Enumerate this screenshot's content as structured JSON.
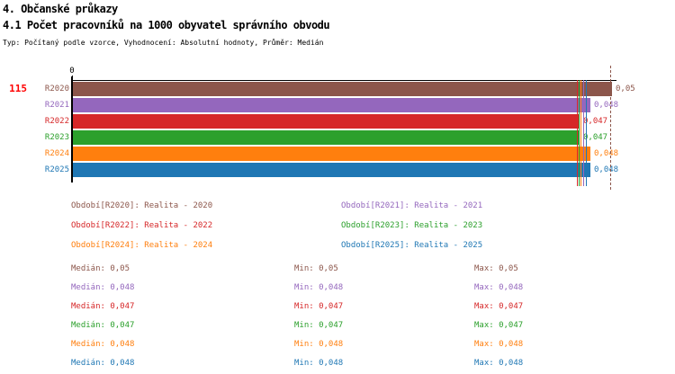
{
  "header": {
    "title1": "4. Občanské průkazy",
    "title2": "4.1 Počet pracovníků na 1000 obyvatel správního obvodu",
    "meta": "Typ: Počítaný podle vzorce, Vyhodnocení: Absolutní hodnoty, Průměr: Medián"
  },
  "chart_data": {
    "type": "bar",
    "orientation": "horizontal",
    "title": "4.1 Počet pracovníků na 1000 obyvatel správního obvodu",
    "x_axis": {
      "origin_tick_label": "0",
      "min": 0,
      "max_shown_value": 0.05,
      "grid": false
    },
    "row_count_label": "115",
    "row_count_color": "#ff0000",
    "legend_position": "bottom",
    "categories": [
      "R2020",
      "R2021",
      "R2022",
      "R2023",
      "R2024",
      "R2025"
    ],
    "values": [
      0.05,
      0.048,
      0.047,
      0.047,
      0.048,
      0.048
    ],
    "series": [
      {
        "category": "R2020",
        "value": 0.05,
        "value_label": "0,05",
        "color": "#8c564b",
        "legend": "Období[R2020]: Realita - 2020",
        "median": "Medián: 0,05",
        "min": "Min: 0,05",
        "max": "Max: 0,05"
      },
      {
        "category": "R2021",
        "value": 0.048,
        "value_label": "0,048",
        "color": "#9467bd",
        "legend": "Období[R2021]: Realita - 2021",
        "median": "Medián: 0,048",
        "min": "Min: 0,048",
        "max": "Max: 0,048"
      },
      {
        "category": "R2022",
        "value": 0.047,
        "value_label": "0,047",
        "color": "#d62728",
        "legend": "Období[R2022]: Realita - 2022",
        "median": "Medián: 0,047",
        "min": "Min: 0,047",
        "max": "Max: 0,047"
      },
      {
        "category": "R2023",
        "value": 0.047,
        "value_label": "0,047",
        "color": "#2ca02c",
        "legend": "Období[R2023]: Realita - 2023",
        "median": "Medián: 0,047",
        "min": "Min: 0,047",
        "max": "Max: 0,047"
      },
      {
        "category": "R2024",
        "value": 0.048,
        "value_label": "0,048",
        "color": "#ff7f0e",
        "legend": "Období[R2024]: Realita - 2024",
        "median": "Medián: 0,048",
        "min": "Min: 0,048",
        "max": "Max: 0,048"
      },
      {
        "category": "R2025",
        "value": 0.048,
        "value_label": "0,048",
        "color": "#1f77b4",
        "legend": "Období[R2025]: Realita - 2025",
        "median": "Medián: 0,048",
        "min": "Min: 0,048",
        "max": "Max: 0,048"
      }
    ]
  }
}
